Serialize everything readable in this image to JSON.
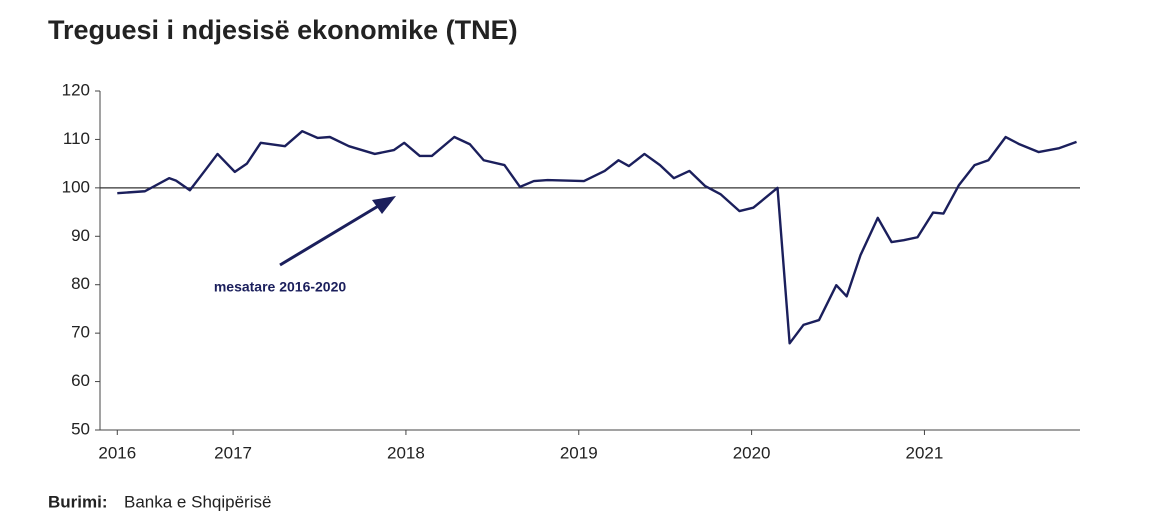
{
  "chart_data": {
    "type": "line",
    "title": "Treguesi i ndjesisë ekonomike (TNE)",
    "source_label": "Burimi:",
    "source": "Banka e Shqipërisë",
    "annotation": "mesatare 2016-2020",
    "reference_line": 100,
    "xlim": [
      2016.23,
      2021.9
    ],
    "xticks": [
      {
        "value": 2016.33,
        "label": "2016"
      },
      2017,
      2018,
      2019,
      2020,
      2021
    ],
    "ylim": [
      50,
      120
    ],
    "yticks": [
      50,
      60,
      70,
      80,
      90,
      100,
      110,
      120
    ],
    "series": [
      {
        "name": "TNE",
        "color": "#1b1f5c",
        "x": [
          2016.33,
          2016.49,
          2016.63,
          2016.67,
          2016.75,
          2016.84,
          2016.91,
          2017.01,
          2017.08,
          2017.16,
          2017.3,
          2017.4,
          2017.49,
          2017.56,
          2017.67,
          2017.82,
          2017.93,
          2017.99,
          2018.08,
          2018.15,
          2018.28,
          2018.37,
          2018.45,
          2018.57,
          2018.66,
          2018.74,
          2018.82,
          2019.03,
          2019.15,
          2019.23,
          2019.29,
          2019.38,
          2019.47,
          2019.55,
          2019.64,
          2019.73,
          2019.82,
          2019.93,
          2020.01,
          2020.15,
          2020.22,
          2020.3,
          2020.39,
          2020.49,
          2020.55,
          2020.63,
          2020.73,
          2020.81,
          2020.88,
          2020.96,
          2021.05,
          2021.11,
          2021.2,
          2021.29,
          2021.37,
          2021.47,
          2021.55,
          2021.66,
          2021.78,
          2021.88
        ],
        "values": [
          98.9,
          99.3,
          102,
          101.5,
          99.5,
          103.7,
          107,
          103.3,
          105,
          109.3,
          108.6,
          111.7,
          110.3,
          110.5,
          108.6,
          107,
          107.8,
          109.3,
          106.6,
          106.6,
          110.5,
          109,
          105.7,
          104.7,
          100.2,
          101.4,
          101.6,
          101.4,
          103.5,
          105.7,
          104.5,
          107,
          104.7,
          102,
          103.5,
          100.4,
          98.7,
          95.2,
          95.9,
          100,
          67.9,
          71.7,
          72.7,
          79.9,
          77.6,
          86.1,
          93.8,
          88.8,
          89.2,
          89.8,
          94.9,
          94.7,
          100.6,
          104.7,
          105.7,
          110.5,
          109,
          107.4,
          108.2,
          109.5
        ]
      }
    ]
  }
}
